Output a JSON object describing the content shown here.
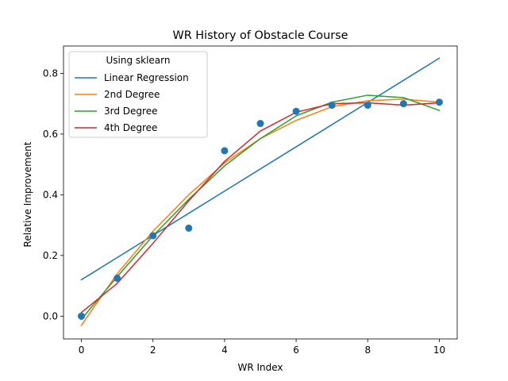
{
  "chart_data": {
    "type": "line",
    "title": "WR History of Obstacle Course",
    "xlabel": "WR Index",
    "ylabel": "Relative Improvement",
    "xlim": [
      -0.5,
      10.5
    ],
    "ylim": [
      -0.075,
      0.89
    ],
    "xticks": [
      0,
      2,
      4,
      6,
      8,
      10
    ],
    "yticks": [
      0.0,
      0.2,
      0.4,
      0.6,
      0.8
    ],
    "xtick_labels": [
      "0",
      "2",
      "4",
      "6",
      "8",
      "10"
    ],
    "ytick_labels": [
      "0.0",
      "0.2",
      "0.4",
      "0.6",
      "0.8"
    ],
    "grid": false,
    "legend": {
      "title": "Using sklearn",
      "placement": "top-left",
      "entries": [
        "Linear Regression",
        "2nd Degree",
        "3rd Degree",
        "4th Degree"
      ]
    },
    "scatter": {
      "color": "#1f77b4",
      "x": [
        0,
        1,
        2,
        3,
        4,
        5,
        6,
        7,
        8,
        9,
        10
      ],
      "y": [
        0.0,
        0.125,
        0.265,
        0.29,
        0.545,
        0.635,
        0.675,
        0.695,
        0.695,
        0.7,
        0.705
      ]
    },
    "series": [
      {
        "name": "Linear Regression",
        "color": "#1f77b4",
        "x": [
          0,
          10
        ],
        "y": [
          0.12,
          0.85
        ]
      },
      {
        "name": "2nd Degree",
        "color": "#ff7f0e",
        "x": [
          0,
          1,
          2,
          3,
          4,
          5,
          6,
          7,
          8,
          9,
          10
        ],
        "y": [
          -0.03,
          0.14,
          0.28,
          0.4,
          0.505,
          0.585,
          0.645,
          0.69,
          0.71,
          0.715,
          0.705
        ]
      },
      {
        "name": "3rd Degree",
        "color": "#2ca02c",
        "x": [
          0,
          1,
          2,
          3,
          4,
          5,
          6,
          7,
          8,
          9,
          10
        ],
        "y": [
          -0.01,
          0.13,
          0.265,
          0.385,
          0.495,
          0.585,
          0.66,
          0.705,
          0.728,
          0.72,
          0.678
        ]
      },
      {
        "name": "4th Degree",
        "color": "#d62728",
        "x": [
          0,
          1,
          2,
          3,
          4,
          5,
          6,
          7,
          8,
          9,
          10
        ],
        "y": [
          0.012,
          0.108,
          0.24,
          0.38,
          0.51,
          0.61,
          0.672,
          0.7,
          0.703,
          0.695,
          0.703
        ]
      }
    ]
  }
}
